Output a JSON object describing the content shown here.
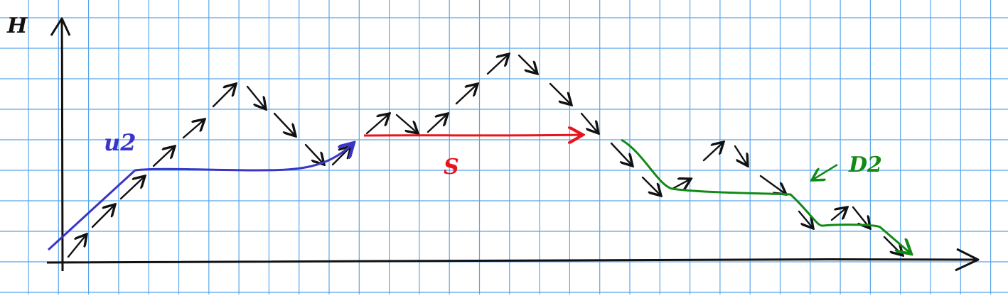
{
  "axes": {
    "y_label": "H"
  },
  "labels": {
    "blue": "u2",
    "red": "S",
    "green": "D2"
  },
  "colors": {
    "grid": "#5aa5ea",
    "ink": "#111111",
    "blue": "#3a35c8",
    "red": "#e8141b",
    "green": "#128a16",
    "paper": "#ffffff"
  }
}
